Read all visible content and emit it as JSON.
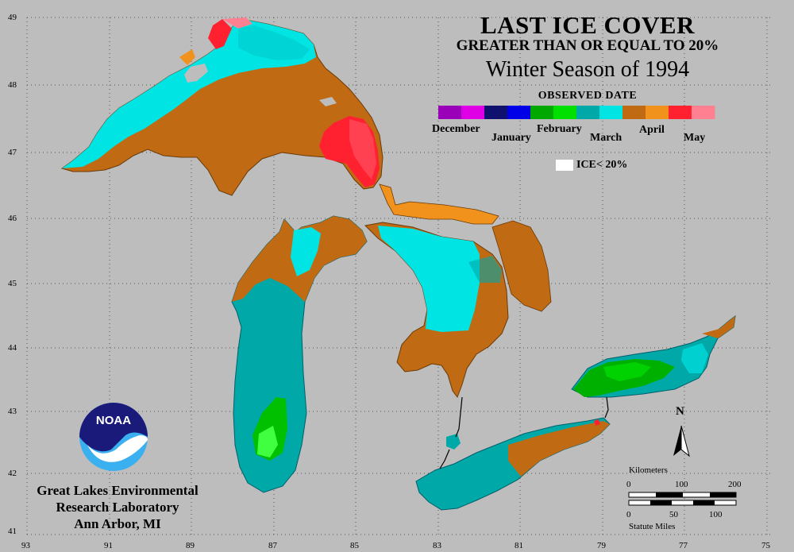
{
  "title": "LAST ICE COVER",
  "subtitle": "GREATER THAN OR EQUAL TO 20%",
  "season": "Winter Season of 1994",
  "legend": {
    "heading": "OBSERVED DATE",
    "months": [
      "December",
      "January",
      "February",
      "March",
      "April",
      "May"
    ],
    "colors": [
      "#9a00b8",
      "#e000e6",
      "#10106e",
      "#0000e8",
      "#00a800",
      "#00e000",
      "#00a8a8",
      "#00e4e4",
      "#c06a14",
      "#f0921c",
      "#ff2030",
      "#ff8090"
    ],
    "ice_label": "ICE< 20%"
  },
  "lat_labels": [
    "49",
    "48",
    "47",
    "46",
    "45",
    "44",
    "43",
    "42",
    "41"
  ],
  "lon_labels": [
    "93",
    "91",
    "89",
    "87",
    "85",
    "83",
    "81",
    "79",
    "77",
    "75"
  ],
  "north_label": "N",
  "scale": {
    "km_title": "Kilometers",
    "km_ticks": [
      "0",
      "100",
      "200"
    ],
    "mi_ticks": [
      "0",
      "50",
      "100"
    ],
    "mi_title": "Statute Miles"
  },
  "logo_text": "NOAA",
  "lab": {
    "line1": "Great Lakes Environmental",
    "line2": "Research Laboratory",
    "line3": "Ann Arbor, MI"
  }
}
